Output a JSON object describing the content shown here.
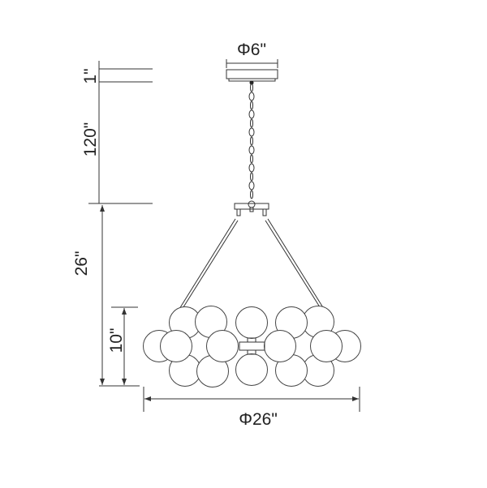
{
  "dimensions": {
    "canopy_diameter": "Φ6\"",
    "canopy_height": "1\"",
    "chain_length": "120\"",
    "overall_height": "26\"",
    "body_height": "10\"",
    "body_diameter": "Φ26\""
  }
}
